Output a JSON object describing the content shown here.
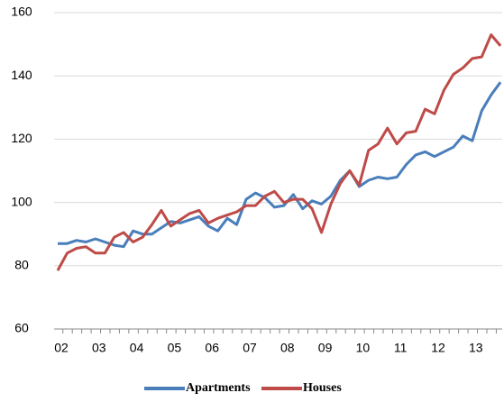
{
  "chart_data": {
    "type": "line",
    "categories": [
      "02",
      null,
      null,
      null,
      "03",
      null,
      null,
      null,
      "04",
      null,
      null,
      null,
      "05",
      null,
      null,
      null,
      "06",
      null,
      null,
      null,
      "07",
      null,
      null,
      null,
      "08",
      null,
      null,
      null,
      "09",
      null,
      null,
      null,
      "10",
      null,
      null,
      null,
      "11",
      null,
      null,
      null,
      "12",
      null,
      null,
      null,
      "13",
      null,
      null,
      null
    ],
    "series": [
      {
        "name": "Apartments",
        "color": "#4a7ebb",
        "values": [
          87,
          87,
          88,
          87.5,
          88.5,
          87.5,
          86.5,
          86,
          91,
          90,
          90,
          92,
          94,
          93.5,
          94.5,
          95.5,
          92.5,
          91,
          95,
          93,
          101,
          103,
          101.5,
          98.5,
          99,
          102.5,
          98,
          100.5,
          99.5,
          102,
          107,
          110,
          105,
          107,
          108,
          107.5,
          108,
          112,
          115,
          116,
          114.5,
          116,
          117.5,
          121,
          119.5,
          129,
          134,
          138
        ]
      },
      {
        "name": "Houses",
        "color": "#be4b48",
        "values": [
          78.5,
          84,
          85.5,
          86,
          84,
          84,
          89,
          90.5,
          87.5,
          89,
          93,
          97.5,
          92.5,
          94.5,
          96.5,
          97.5,
          93.5,
          95,
          96,
          97,
          99,
          99,
          102,
          103.5,
          100,
          101,
          101,
          98,
          90.5,
          99.5,
          106,
          110,
          105.5,
          116.5,
          118.5,
          123.5,
          118.5,
          122,
          122.5,
          129.5,
          128,
          135.5,
          140.5,
          142.5,
          145.5,
          146,
          153,
          149.5
        ]
      }
    ],
    "ylim": [
      60,
      160
    ],
    "yticks": [
      60,
      80,
      100,
      120,
      140,
      160
    ],
    "grid": true,
    "legend": "bottom"
  }
}
